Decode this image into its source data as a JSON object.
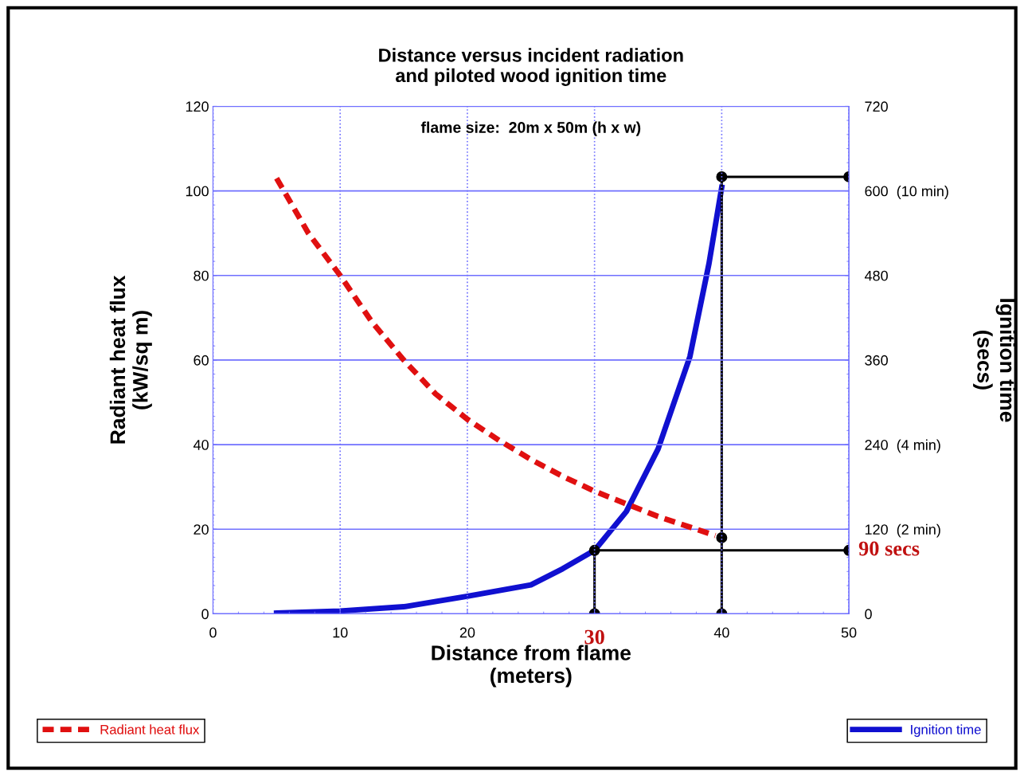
{
  "chart_data": {
    "type": "line",
    "title": "Distance versus incident radiation\nand piloted wood ignition time",
    "xlabel": "Distance from flame\n(meters)",
    "ylabel": "Radiant heat flux\n(kW/sq m)",
    "y2label": "Ignition time\n(secs)",
    "xlim": [
      0,
      50
    ],
    "xticks": [
      0,
      10,
      20,
      {
        "value": 30,
        "label": null
      },
      40,
      50
    ],
    "ylim": [
      0,
      120
    ],
    "yticks": [
      0,
      20,
      40,
      60,
      80,
      100,
      120
    ],
    "y2lim": [
      0,
      720
    ],
    "y2ticks": [
      0,
      {
        "value": 120,
        "label": "120  (2 min)"
      },
      {
        "value": 240,
        "label": "240  (4 min)"
      },
      360,
      480,
      {
        "value": 600,
        "label": "600  (10 min)"
      },
      720
    ],
    "grid": true,
    "legend": "bottom",
    "series": [
      {
        "name": "Radiant heat flux",
        "color": "#e01010",
        "line_style": "dashed",
        "x": [
          5,
          7.5,
          10,
          12.5,
          15,
          17.5,
          20,
          22.5,
          25,
          27.5,
          30,
          32.5,
          35,
          37.5,
          39.5
        ],
        "values": [
          103,
          90,
          80,
          69,
          60,
          52,
          46,
          41,
          36.5,
          32.5,
          29,
          26,
          23,
          20.5,
          18.5
        ]
      },
      {
        "name": "Ignition time",
        "color": "#1010d0",
        "axis": "y2",
        "line_style": "solid",
        "x": [
          5,
          10,
          15,
          20,
          25,
          27.5,
          30,
          32.5,
          35,
          37.5,
          39,
          40
        ],
        "values": [
          1,
          4,
          10,
          25,
          41,
          64,
          90,
          145,
          234,
          365,
          497,
          605
        ]
      },
      {
        "color": "#000000",
        "axis": "y2",
        "line_style": "solid",
        "marker": "circle",
        "x": [
          30,
          30,
          50
        ],
        "values": [
          0,
          90,
          90
        ]
      },
      {
        "color": "#000000",
        "axis": "y2",
        "line_style": "solid",
        "marker": "circle",
        "x": [
          40,
          40,
          40,
          50
        ],
        "values": [
          0,
          108,
          620,
          620
        ]
      }
    ],
    "annotations": [
      "flame size:  20m x 50m (h x w)",
      {
        "text": "30",
        "x": 30,
        "y": 0
      },
      "90 secs"
    ]
  }
}
